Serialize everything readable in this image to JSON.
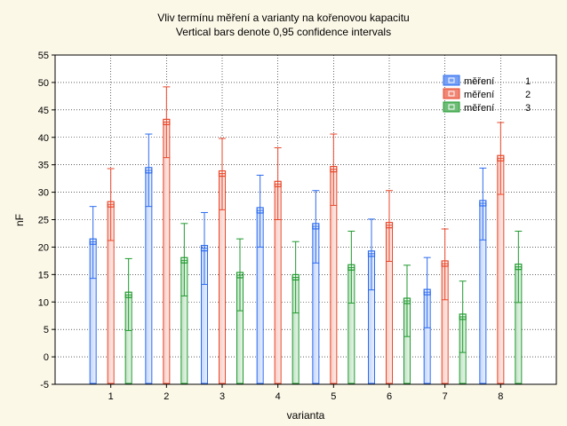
{
  "chart_data": {
    "type": "bar",
    "title": "Vliv termínu měření a varianty na kořenovou kapacitu",
    "subtitle": "Vertical bars denote 0,95 confidence intervals",
    "xlabel": "varianta",
    "ylabel": "nF",
    "ylim": [
      -5,
      55
    ],
    "yticks": [
      -5,
      0,
      5,
      10,
      15,
      20,
      25,
      30,
      35,
      40,
      45,
      50,
      55
    ],
    "categories": [
      "1",
      "2",
      "3",
      "4",
      "5",
      "6",
      "7",
      "8"
    ],
    "grid": true,
    "legend_position": "top-right",
    "series": [
      {
        "name": "měření",
        "number": "1",
        "color": "#2c6cf0",
        "values": [
          21,
          34,
          19.8,
          26.7,
          23.8,
          18.8,
          11.8,
          28
        ],
        "ci_low": [
          14.3,
          27.4,
          13.2,
          20,
          17.1,
          12.2,
          5.3,
          21.3
        ],
        "ci_high": [
          27.4,
          40.6,
          26.3,
          33.1,
          30.3,
          25.1,
          18.1,
          34.4
        ]
      },
      {
        "name": "měření",
        "number": "2",
        "color": "#e8472a",
        "values": [
          27.8,
          42.8,
          33.4,
          31.5,
          34.2,
          24,
          17,
          36.2
        ],
        "ci_low": [
          21.2,
          36.3,
          26.8,
          25,
          27.6,
          17.4,
          10.4,
          29.6
        ],
        "ci_high": [
          34.3,
          49.2,
          39.8,
          38.1,
          40.6,
          30.3,
          23.3,
          42.7
        ]
      },
      {
        "name": "měření",
        "number": "3",
        "color": "#1f9a2e",
        "values": [
          11.3,
          17.6,
          14.9,
          14.5,
          16.3,
          10.2,
          7.3,
          16.4
        ],
        "ci_low": [
          4.8,
          11.1,
          8.4,
          8,
          9.8,
          3.7,
          0.8,
          9.9
        ],
        "ci_high": [
          17.9,
          24.3,
          21.5,
          21,
          22.9,
          16.7,
          13.8,
          22.9
        ]
      }
    ]
  }
}
